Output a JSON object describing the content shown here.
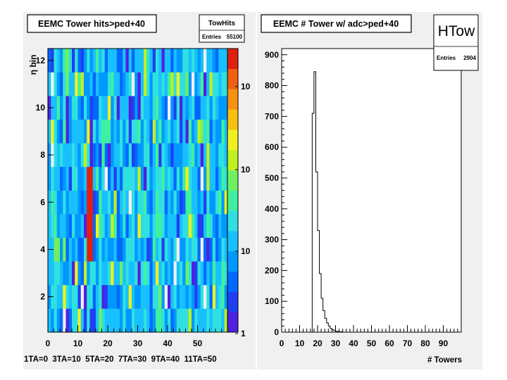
{
  "left_panel": {
    "title": "EEMC Tower hits>ped+40",
    "stats": {
      "name": "TowHits",
      "entries_label": "Entries",
      "entries_value": "55100"
    },
    "y_axis_label": "η bin",
    "x_ticks": [
      "0",
      "10",
      "20",
      "30",
      "40",
      "50"
    ],
    "y_ticks": [
      "2",
      "4",
      "6",
      "8",
      "10",
      "12"
    ],
    "palette_labels": [
      "10",
      "10",
      "10",
      "1"
    ],
    "footer_label": "1TA=0  3TA=10  5TA=20  7TA=30  9TA=40  11TA=50"
  },
  "right_panel": {
    "title": "EEMC # Tower w/ adc>ped+40",
    "stats": {
      "name": "HTow",
      "entries_label": "Entries",
      "entries_value": "2904"
    },
    "x_label": "# Towers",
    "x_ticks": [
      "0",
      "10",
      "20",
      "30",
      "40",
      "50",
      "60",
      "70",
      "80",
      "90"
    ],
    "y_ticks": [
      "0",
      "100",
      "200",
      "300",
      "400",
      "500",
      "600",
      "700",
      "800",
      "900"
    ]
  },
  "chart_data": [
    {
      "type": "heatmap",
      "title": "EEMC Tower hits>ped+40",
      "ylabel": "η bin",
      "x_range": [
        0,
        60
      ],
      "y_range": [
        0.5,
        12.5
      ],
      "color_scale": "log",
      "z_range": [
        1,
        2000
      ],
      "hot_columns": [
        {
          "x_from": 12,
          "x_to": 16,
          "y_from": 3.5,
          "y_to": 7.5,
          "level": "max"
        }
      ],
      "entries": 55100
    },
    {
      "type": "bar",
      "title": "EEMC # Tower w/ adc>ped+40",
      "xlabel": "# Towers",
      "xlim": [
        0,
        100
      ],
      "ylim": [
        0,
        920
      ],
      "bin_width": 1,
      "x": [
        16,
        17,
        18,
        19,
        20,
        21,
        22,
        23,
        24,
        25,
        26,
        27,
        28,
        29,
        30,
        31,
        32,
        33,
        34
      ],
      "values": [
        0,
        710,
        845,
        520,
        330,
        190,
        110,
        70,
        45,
        30,
        20,
        12,
        8,
        5,
        3,
        2,
        1,
        1,
        0
      ],
      "entries": 2904
    }
  ]
}
